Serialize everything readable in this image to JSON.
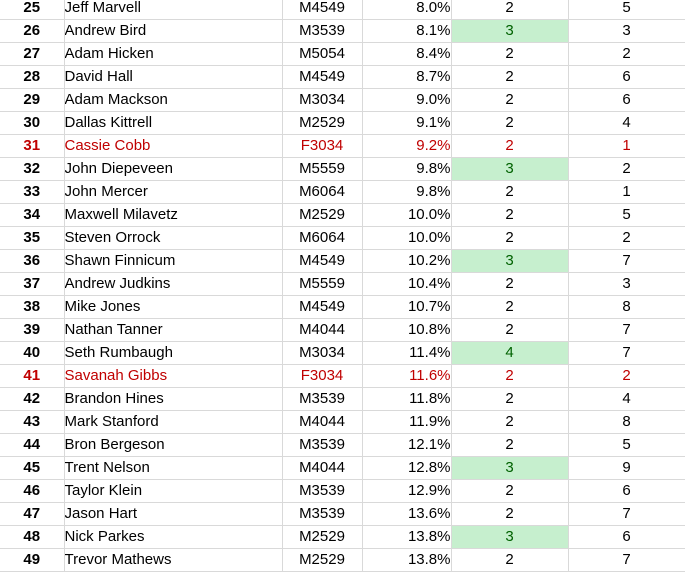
{
  "colors": {
    "highlight_fill": "#c6efce",
    "highlight_text": "#006100",
    "female_text": "#c00000",
    "gridline": "#d9d9d9"
  },
  "rows": [
    {
      "rank": "25",
      "name": "Jeff Marvell",
      "division": "M4549",
      "pct": "8.0%",
      "v1": "2",
      "v2": "5",
      "highlight": false,
      "female": false
    },
    {
      "rank": "26",
      "name": "Andrew Bird",
      "division": "M3539",
      "pct": "8.1%",
      "v1": "3",
      "v2": "3",
      "highlight": true,
      "female": false
    },
    {
      "rank": "27",
      "name": "Adam Hicken",
      "division": "M5054",
      "pct": "8.4%",
      "v1": "2",
      "v2": "2",
      "highlight": false,
      "female": false
    },
    {
      "rank": "28",
      "name": "David Hall",
      "division": "M4549",
      "pct": "8.7%",
      "v1": "2",
      "v2": "6",
      "highlight": false,
      "female": false
    },
    {
      "rank": "29",
      "name": "Adam Mackson",
      "division": "M3034",
      "pct": "9.0%",
      "v1": "2",
      "v2": "6",
      "highlight": false,
      "female": false
    },
    {
      "rank": "30",
      "name": "Dallas Kittrell",
      "division": "M2529",
      "pct": "9.1%",
      "v1": "2",
      "v2": "4",
      "highlight": false,
      "female": false
    },
    {
      "rank": "31",
      "name": "Cassie Cobb",
      "division": "F3034",
      "pct": "9.2%",
      "v1": "2",
      "v2": "1",
      "highlight": false,
      "female": true
    },
    {
      "rank": "32",
      "name": "John Diepeveen",
      "division": "M5559",
      "pct": "9.8%",
      "v1": "3",
      "v2": "2",
      "highlight": true,
      "female": false
    },
    {
      "rank": "33",
      "name": "John Mercer",
      "division": "M6064",
      "pct": "9.8%",
      "v1": "2",
      "v2": "1",
      "highlight": false,
      "female": false
    },
    {
      "rank": "34",
      "name": "Maxwell Milavetz",
      "division": "M2529",
      "pct": "10.0%",
      "v1": "2",
      "v2": "5",
      "highlight": false,
      "female": false
    },
    {
      "rank": "35",
      "name": "Steven Orrock",
      "division": "M6064",
      "pct": "10.0%",
      "v1": "2",
      "v2": "2",
      "highlight": false,
      "female": false
    },
    {
      "rank": "36",
      "name": "Shawn Finnicum",
      "division": "M4549",
      "pct": "10.2%",
      "v1": "3",
      "v2": "7",
      "highlight": true,
      "female": false
    },
    {
      "rank": "37",
      "name": "Andrew Judkins",
      "division": "M5559",
      "pct": "10.4%",
      "v1": "2",
      "v2": "3",
      "highlight": false,
      "female": false
    },
    {
      "rank": "38",
      "name": "Mike Jones",
      "division": "M4549",
      "pct": "10.7%",
      "v1": "2",
      "v2": "8",
      "highlight": false,
      "female": false
    },
    {
      "rank": "39",
      "name": "Nathan Tanner",
      "division": "M4044",
      "pct": "10.8%",
      "v1": "2",
      "v2": "7",
      "highlight": false,
      "female": false
    },
    {
      "rank": "40",
      "name": "Seth Rumbaugh",
      "division": "M3034",
      "pct": "11.4%",
      "v1": "4",
      "v2": "7",
      "highlight": true,
      "female": false
    },
    {
      "rank": "41",
      "name": "Savanah Gibbs",
      "division": "F3034",
      "pct": "11.6%",
      "v1": "2",
      "v2": "2",
      "highlight": false,
      "female": true
    },
    {
      "rank": "42",
      "name": "Brandon Hines",
      "division": "M3539",
      "pct": "11.8%",
      "v1": "2",
      "v2": "4",
      "highlight": false,
      "female": false
    },
    {
      "rank": "43",
      "name": "Mark Stanford",
      "division": "M4044",
      "pct": "11.9%",
      "v1": "2",
      "v2": "8",
      "highlight": false,
      "female": false
    },
    {
      "rank": "44",
      "name": "Bron Bergeson",
      "division": "M3539",
      "pct": "12.1%",
      "v1": "2",
      "v2": "5",
      "highlight": false,
      "female": false
    },
    {
      "rank": "45",
      "name": "Trent Nelson",
      "division": "M4044",
      "pct": "12.8%",
      "v1": "3",
      "v2": "9",
      "highlight": true,
      "female": false
    },
    {
      "rank": "46",
      "name": "Taylor Klein",
      "division": "M3539",
      "pct": "12.9%",
      "v1": "2",
      "v2": "6",
      "highlight": false,
      "female": false
    },
    {
      "rank": "47",
      "name": "Jason Hart",
      "division": "M3539",
      "pct": "13.6%",
      "v1": "2",
      "v2": "7",
      "highlight": false,
      "female": false
    },
    {
      "rank": "48",
      "name": "Nick Parkes",
      "division": "M2529",
      "pct": "13.8%",
      "v1": "3",
      "v2": "6",
      "highlight": true,
      "female": false
    },
    {
      "rank": "49",
      "name": "Trevor Mathews",
      "division": "M2529",
      "pct": "13.8%",
      "v1": "2",
      "v2": "7",
      "highlight": false,
      "female": false
    }
  ]
}
